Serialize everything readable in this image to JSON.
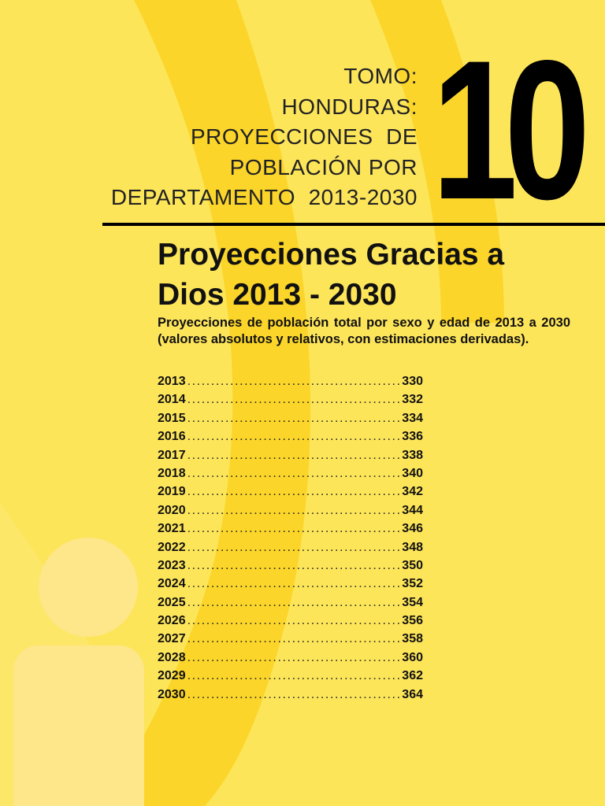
{
  "header": {
    "lines": [
      "TOMO:",
      "HONDURAS:",
      "PROYECCIONES  DE",
      "POBLACIÓN POR",
      "DEPARTAMENTO  2013-2030"
    ],
    "volume_number": "10"
  },
  "title": {
    "line1": "Proyecciones Gracias a",
    "line2": "Dios 2013 - 2030"
  },
  "subtitle": "Proyecciones de  población total por sexo y edad de 2013 a 2030 (valores absolutos y relativos, con estimaciones derivadas).",
  "toc": {
    "leader": "..............................................................................",
    "entries": [
      {
        "year": "2013",
        "page": "330"
      },
      {
        "year": "2014",
        "page": "332"
      },
      {
        "year": "2015",
        "page": "334"
      },
      {
        "year": "2016",
        "page": "336"
      },
      {
        "year": "2017",
        "page": "338"
      },
      {
        "year": "2018",
        "page": "340"
      },
      {
        "year": "2019",
        "page": "342"
      },
      {
        "year": "2020",
        "page": "344"
      },
      {
        "year": "2021",
        "page": "346"
      },
      {
        "year": "2022",
        "page": "348"
      },
      {
        "year": "2023",
        "page": "350"
      },
      {
        "year": "2024",
        "page": "352"
      },
      {
        "year": "2025",
        "page": "354"
      },
      {
        "year": "2026",
        "page": "356"
      },
      {
        "year": "2027",
        "page": "358"
      },
      {
        "year": "2028",
        "page": "360"
      },
      {
        "year": "2029",
        "page": "362"
      },
      {
        "year": "2030",
        "page": "364"
      }
    ]
  },
  "colors": {
    "background": "#fde85f",
    "band": "#fcd92a",
    "icon": "#fee787",
    "text": "#111111"
  }
}
